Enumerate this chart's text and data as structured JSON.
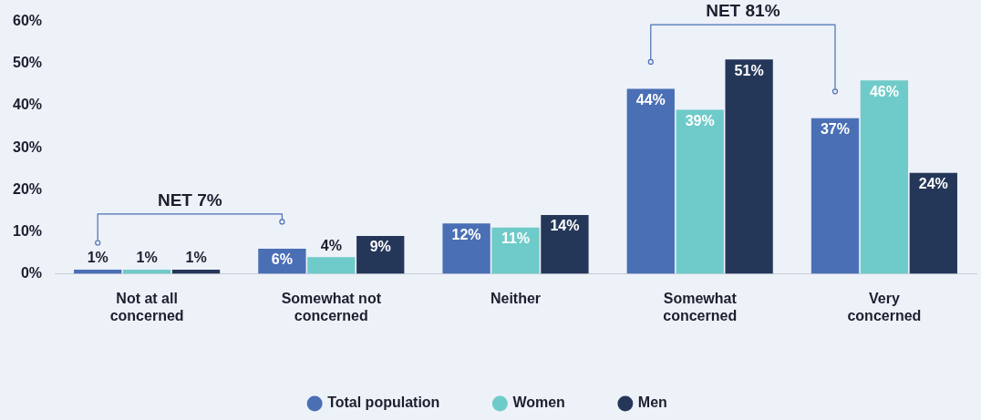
{
  "chart_data": {
    "type": "bar",
    "categories": [
      "Not at all concerned",
      "Somewhat not concerned",
      "Neither",
      "Somewhat concerned",
      "Very concerned"
    ],
    "series": [
      {
        "name": "Total population",
        "color": "#4a6fb5",
        "values": [
          1,
          6,
          12,
          44,
          37
        ],
        "value_labels": [
          "1%",
          "6%",
          "12%",
          "44%",
          "37%"
        ]
      },
      {
        "name": "Women",
        "color": "#6fcbc9",
        "values": [
          1,
          4,
          11,
          39,
          46
        ],
        "value_labels": [
          "1%",
          "4%",
          "11%",
          "39%",
          "46%"
        ]
      },
      {
        "name": "Men",
        "color": "#253759",
        "values": [
          1,
          9,
          14,
          51,
          24
        ],
        "value_labels": [
          "1%",
          "9%",
          "14%",
          "51%",
          "24%"
        ]
      }
    ],
    "ylim": [
      0,
      60
    ],
    "yticks": [
      {
        "value": 0,
        "label": "0%"
      },
      {
        "value": 10,
        "label": "10%"
      },
      {
        "value": 20,
        "label": "20%"
      },
      {
        "value": 30,
        "label": "30%"
      },
      {
        "value": 40,
        "label": "40%"
      },
      {
        "value": 50,
        "label": "50%"
      },
      {
        "value": 60,
        "label": "60%"
      }
    ],
    "annotations": [
      "NET 7%",
      "NET 81%"
    ],
    "grid": false,
    "legend": "bottom"
  }
}
